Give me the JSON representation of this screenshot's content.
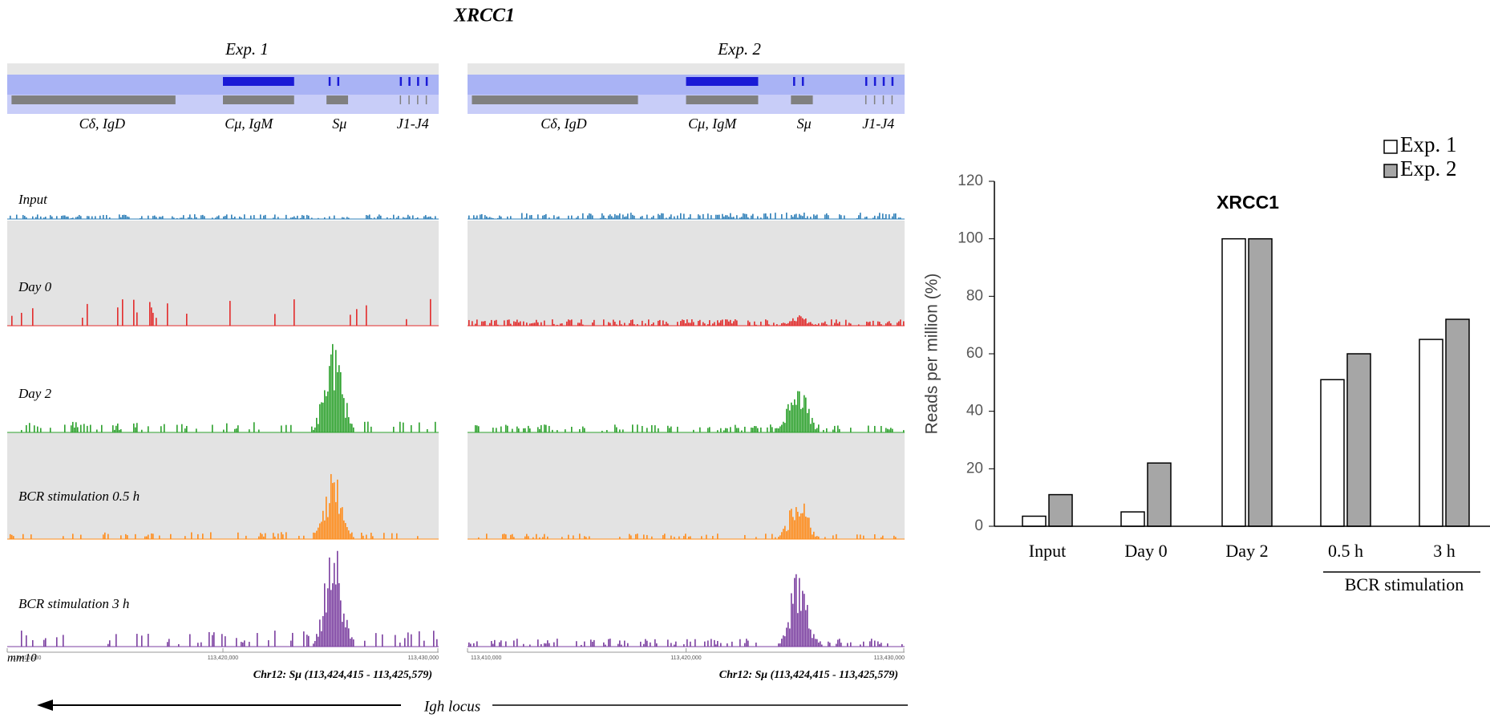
{
  "title": "XRCC1",
  "panels": [
    "Exp. 1",
    "Exp. 2"
  ],
  "genes": [
    "Cδ, IgD",
    "Cμ, IgM",
    "Sμ",
    "J1-J4"
  ],
  "tracks": [
    "Input",
    "Day 0",
    "Day 2",
    "BCR stimulation  0.5 h",
    "BCR stimulation 3 h"
  ],
  "assembly": "mm10",
  "coordinates": [
    "113,410,000",
    "113,420,000",
    "113,430,000"
  ],
  "region": "Chr12: Sμ (113,424,415 - 113,425,579)",
  "locus": "Igh locus",
  "chart_data": {
    "type": "bar",
    "title": "XRCC1",
    "y_label": "Reads per million (%)",
    "categories": [
      "Input",
      "Day 0",
      "Day 2",
      "0.5 h",
      "3 h"
    ],
    "group_label": "BCR stimulation",
    "series": [
      {
        "name": "Exp. 1",
        "color": "#ffffff",
        "values": [
          3.5,
          5,
          100,
          51,
          65
        ]
      },
      {
        "name": "Exp. 2",
        "color": "#a6a6a6",
        "values": [
          11,
          22,
          100,
          60,
          72
        ]
      }
    ],
    "ylim": [
      0,
      120
    ],
    "yticks": [
      0,
      20,
      40,
      60,
      80,
      100,
      120
    ],
    "legend": "top-right"
  }
}
